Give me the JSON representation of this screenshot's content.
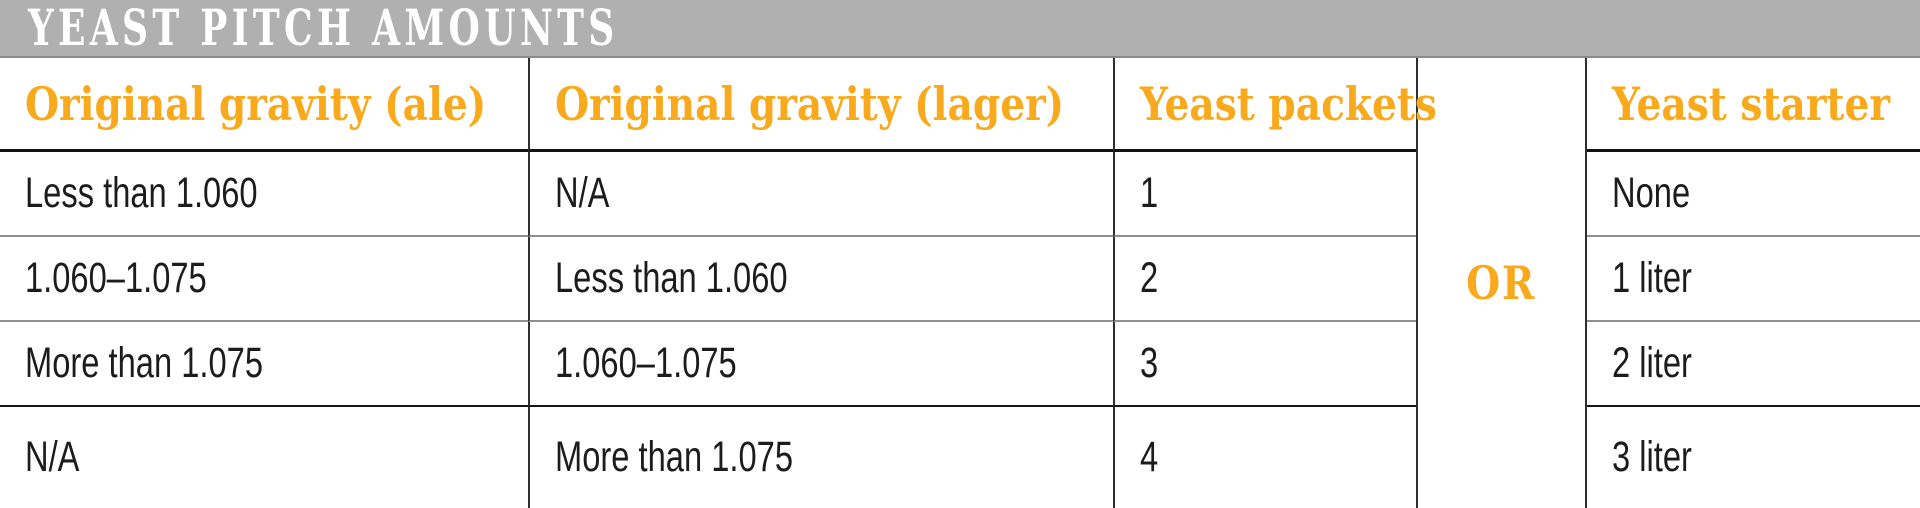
{
  "title_bar": {
    "title": "YEAST PITCH AMOUNTS"
  },
  "table": {
    "headers": {
      "ale": "Original gravity (ale)",
      "lager": "Original gravity (lager)",
      "packets": "Yeast packets",
      "starter": "Yeast starter"
    },
    "or_label": "OR",
    "rows": [
      {
        "ale": "Less than 1.060",
        "lager": "N/A",
        "packets": "1",
        "starter": "None"
      },
      {
        "ale": "1.060–1.075",
        "lager": "Less than 1.060",
        "packets": "2",
        "starter": "1 liter"
      },
      {
        "ale": "More than 1.075",
        "lager": "1.060–1.075",
        "packets": "3",
        "starter": "2 liter"
      },
      {
        "ale": "N/A",
        "lager": "More than 1.075",
        "packets": "4",
        "starter": "3 liter"
      }
    ]
  },
  "colors": {
    "title_bar_bg": "#B0B0B0",
    "title_text": "#FFFFFF",
    "accent_orange": "#F8A91C",
    "body_text": "#1C1C1C",
    "rule_dark": "#161616",
    "rule_gray": "#8F8F8F"
  }
}
